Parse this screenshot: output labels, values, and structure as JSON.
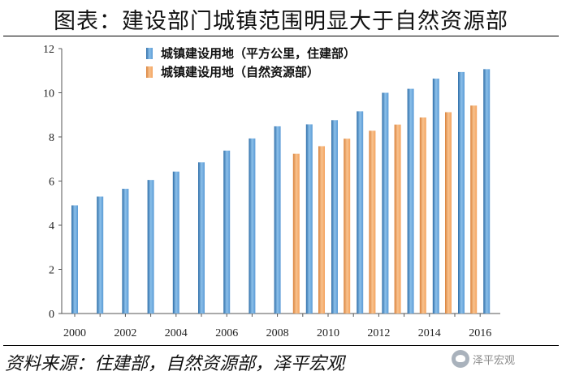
{
  "page": {
    "title": "图表：建设部门城镇范围明显大于自然资源部",
    "source": "资料来源：住建部，自然资源部，泽平宏观",
    "watermark": "泽平宏观"
  },
  "colors": {
    "series1": "#5b9bd5",
    "series2": "#f4a460",
    "axis": "#555555"
  },
  "chart_data": {
    "type": "bar",
    "title": "",
    "xlabel": "",
    "ylabel": "",
    "ylim": [
      0,
      12
    ],
    "yticks": [
      0,
      2,
      4,
      6,
      8,
      10,
      12
    ],
    "grid": false,
    "legend_position": "top-center",
    "categories": [
      "2000",
      "2001",
      "2002",
      "2003",
      "2004",
      "2005",
      "2006",
      "2007",
      "2008",
      "2009",
      "2010",
      "2011",
      "2012",
      "2013",
      "2014",
      "2015",
      "2016"
    ],
    "x_tick_labels": [
      "2000",
      "2002",
      "2004",
      "2006",
      "2008",
      "2010",
      "2012",
      "2014",
      "2016"
    ],
    "series": [
      {
        "name": "城镇建设用地（平方公里，住建部）",
        "values": [
          4.9,
          5.3,
          5.65,
          6.05,
          6.43,
          6.85,
          7.38,
          7.93,
          8.48,
          8.57,
          8.76,
          9.16,
          10.0,
          10.18,
          10.64,
          10.94,
          11.07
        ]
      },
      {
        "name": "城镇建设用地（自然资源部）",
        "values": [
          null,
          null,
          null,
          null,
          null,
          null,
          null,
          null,
          null,
          7.24,
          7.58,
          7.92,
          8.28,
          8.56,
          8.88,
          9.12,
          9.42
        ]
      }
    ]
  }
}
